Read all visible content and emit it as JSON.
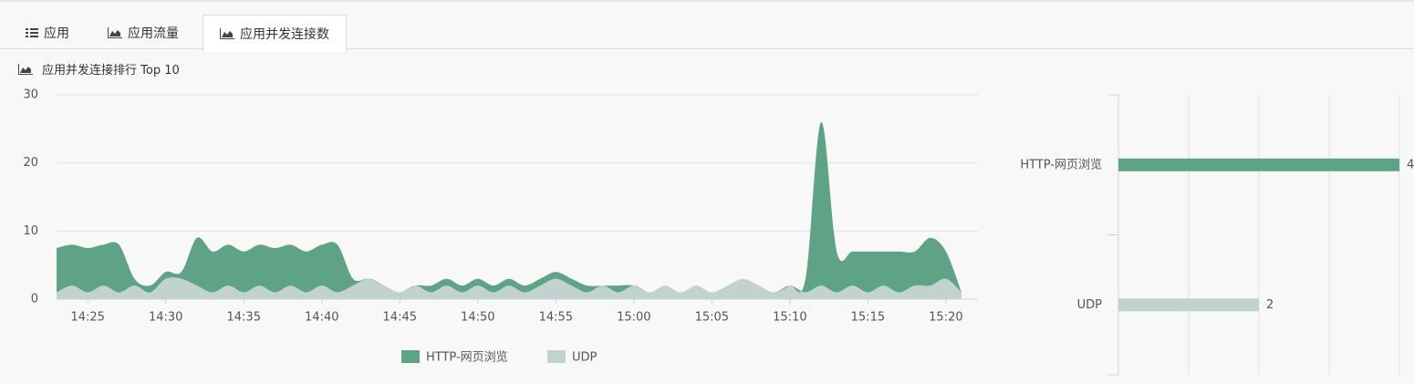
{
  "tabs": [
    "应用",
    "应用流量",
    "应用并发连接数"
  ],
  "section_title": "应用并发连接排行 Top 10",
  "chart_data": [
    {
      "type": "area",
      "stacked": true,
      "grid": true,
      "categories": [
        null,
        null,
        "14:25",
        null,
        null,
        null,
        null,
        "14:30",
        null,
        null,
        null,
        null,
        "14:35",
        null,
        null,
        null,
        null,
        "14:40",
        null,
        null,
        null,
        null,
        "14:45",
        null,
        null,
        null,
        null,
        "14:50",
        null,
        null,
        null,
        null,
        "14:55",
        null,
        null,
        null,
        null,
        "15:00",
        null,
        null,
        null,
        null,
        "15:05",
        null,
        null,
        null,
        null,
        "15:10",
        null,
        null,
        null,
        null,
        "15:15",
        null,
        null,
        null,
        null,
        "15:20",
        null
      ],
      "ylim": [
        0,
        30
      ],
      "yticks": [
        0,
        10,
        20,
        30
      ],
      "legend": "bottom",
      "series": [
        {
          "name": "HTTP-网页浏览",
          "color": "#5fa387",
          "values": [
            6.5,
            6,
            6.5,
            6,
            7,
            1,
            1,
            1,
            1,
            7,
            6,
            6,
            6,
            6,
            6.5,
            6,
            6,
            6,
            7,
            1,
            0,
            0,
            0,
            0,
            1,
            1,
            1,
            1,
            1,
            1,
            1,
            1,
            1,
            1,
            1,
            0,
            1,
            0,
            0,
            0,
            0,
            0,
            0,
            0,
            0,
            0,
            0,
            0,
            2,
            24,
            6,
            5,
            6,
            5,
            6,
            5,
            7,
            4,
            0
          ]
        },
        {
          "name": "UDP",
          "color": "#c2d3cf",
          "values": [
            1,
            2,
            1,
            2,
            1,
            2,
            1,
            3,
            3,
            2,
            1,
            2,
            1,
            2,
            1,
            2,
            1,
            2,
            1,
            2,
            3,
            2,
            1,
            2,
            1,
            2,
            1,
            2,
            1,
            2,
            1,
            2,
            3,
            2,
            1,
            2,
            1,
            2,
            1,
            2,
            1,
            2,
            1,
            2,
            3,
            2,
            1,
            2,
            1,
            2,
            1,
            2,
            1,
            2,
            1,
            2,
            2,
            3,
            1
          ]
        }
      ]
    },
    {
      "type": "hbar",
      "grid": true,
      "categories": [
        "HTTP-网页浏览",
        "UDP"
      ],
      "values": [
        4,
        2
      ],
      "colors": [
        "#5fa387",
        "#c2d3cf"
      ],
      "xlim": [
        0,
        4
      ],
      "xticks": [
        0,
        1,
        2,
        3,
        4
      ]
    }
  ]
}
